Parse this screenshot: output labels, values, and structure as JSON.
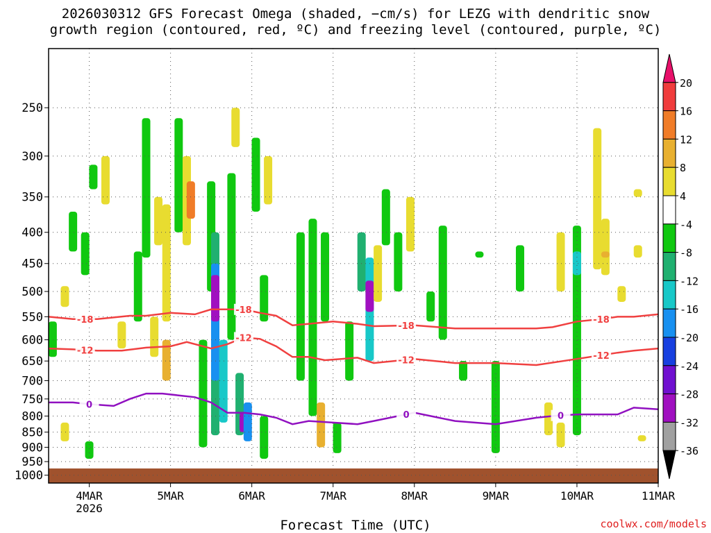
{
  "chart_data": {
    "type": "heatmap",
    "title_line1": "2026030312 GFS Forecast Omega (shaded, −cm/s) for LEZG with dendritic snow",
    "title_line2": "growth region (contoured, red, ºC) and freezing level (contoured, purple, ºC)",
    "xlabel": "Forecast Time (UTC)",
    "credit": "coolwx.com/models",
    "x_ticks": [
      {
        "t": 0.5,
        "label": "4MAR",
        "sub": "2026"
      },
      {
        "t": 1.5,
        "label": "5MAR",
        "sub": ""
      },
      {
        "t": 2.5,
        "label": "6MAR",
        "sub": ""
      },
      {
        "t": 3.5,
        "label": "7MAR",
        "sub": ""
      },
      {
        "t": 4.5,
        "label": "8MAR",
        "sub": ""
      },
      {
        "t": 5.5,
        "label": "9MAR",
        "sub": ""
      },
      {
        "t": 6.5,
        "label": "10MAR",
        "sub": ""
      },
      {
        "t": 7.5,
        "label": "11MAR",
        "sub": ""
      }
    ],
    "xlim": [
      0,
      7.5
    ],
    "y_ticks": [
      250,
      300,
      350,
      400,
      450,
      500,
      550,
      600,
      650,
      700,
      750,
      800,
      850,
      900,
      950,
      1000
    ],
    "ylim": [
      200,
      1030
    ],
    "y_scale": "log-pressure",
    "ground_top_hpa": 975,
    "colorbar": {
      "levels": [
        20,
        16,
        12,
        8,
        4,
        -4,
        -8,
        -12,
        -16,
        -20,
        -24,
        -28,
        -32,
        -36
      ],
      "colors": [
        "#e8106a",
        "#f03c3c",
        "#f07c28",
        "#e8b030",
        "#e8dc30",
        "#ffffff",
        "#10c810",
        "#20b070",
        "#18c8c8",
        "#1890f0",
        "#1840e0",
        "#7010d0",
        "#a010c0",
        "#a0a0a0",
        "#000000"
      ]
    },
    "contours": [
      {
        "label": "-18",
        "color": "#f04040",
        "x": [
          0,
          0.3,
          0.6,
          1.0,
          1.2,
          1.5,
          1.8,
          2.0,
          2.2,
          2.4,
          2.6,
          2.8,
          3.0,
          3.2,
          3.5,
          3.8,
          4.0,
          4.5,
          5.0,
          5.5,
          6.0,
          6.2,
          6.5,
          6.8,
          7.0,
          7.2,
          7.5
        ],
        "p": [
          550,
          555,
          555,
          548,
          548,
          542,
          545,
          535,
          535,
          535,
          542,
          548,
          568,
          565,
          560,
          565,
          570,
          568,
          575,
          575,
          575,
          572,
          560,
          555,
          550,
          550,
          545
        ],
        "label_x": [
          0.45,
          2.4,
          4.4,
          6.8
        ]
      },
      {
        "label": "-12",
        "color": "#f04040",
        "x": [
          0,
          0.3,
          0.6,
          0.9,
          1.2,
          1.5,
          1.7,
          2.0,
          2.2,
          2.4,
          2.6,
          2.8,
          3.0,
          3.2,
          3.4,
          3.6,
          3.8,
          4.0,
          4.5,
          5.0,
          5.5,
          6.0,
          6.5,
          7.0,
          7.2,
          7.5
        ],
        "p": [
          620,
          622,
          625,
          625,
          618,
          615,
          605,
          620,
          610,
          595,
          598,
          615,
          640,
          640,
          648,
          645,
          642,
          655,
          645,
          655,
          655,
          660,
          645,
          630,
          625,
          620
        ],
        "label_x": [
          0.45,
          2.4,
          4.4,
          6.8
        ]
      },
      {
        "label": "0",
        "color": "#9010c0",
        "x": [
          0,
          0.3,
          0.5,
          0.8,
          1.0,
          1.2,
          1.4,
          1.6,
          1.8,
          2.0,
          2.2,
          2.4,
          2.6,
          2.8,
          3.0,
          3.2,
          3.5,
          3.8,
          4.0,
          4.5,
          5.0,
          5.5,
          6.0,
          6.2,
          6.5,
          7.0,
          7.2,
          7.5
        ],
        "p": [
          760,
          760,
          765,
          770,
          750,
          735,
          735,
          740,
          745,
          760,
          790,
          790,
          795,
          805,
          825,
          815,
          820,
          825,
          815,
          790,
          815,
          825,
          805,
          800,
          795,
          795,
          775,
          780
        ],
        "label_x": [
          0.5,
          4.4,
          6.3
        ]
      }
    ],
    "shaded_cells": [
      {
        "x": 0.05,
        "p0": 560,
        "p1": 640,
        "v": -6
      },
      {
        "x": 0.3,
        "p0": 370,
        "p1": 430,
        "v": -6
      },
      {
        "x": 0.45,
        "p0": 400,
        "p1": 470,
        "v": -6
      },
      {
        "x": 0.5,
        "p0": 880,
        "p1": 940,
        "v": -6
      },
      {
        "x": 0.55,
        "p0": 310,
        "p1": 340,
        "v": -6
      },
      {
        "x": 0.2,
        "p0": 490,
        "p1": 530,
        "v": 5
      },
      {
        "x": 0.2,
        "p0": 820,
        "p1": 880,
        "v": 5
      },
      {
        "x": 0.7,
        "p0": 300,
        "p1": 360,
        "v": 5
      },
      {
        "x": 0.9,
        "p0": 560,
        "p1": 620,
        "v": 5
      },
      {
        "x": 1.1,
        "p0": 430,
        "p1": 560,
        "v": -6
      },
      {
        "x": 1.2,
        "p0": 260,
        "p1": 440,
        "v": -6
      },
      {
        "x": 1.3,
        "p0": 550,
        "p1": 640,
        "v": 5
      },
      {
        "x": 1.35,
        "p0": 350,
        "p1": 420,
        "v": 6
      },
      {
        "x": 1.45,
        "p0": 360,
        "p1": 560,
        "v": 6
      },
      {
        "x": 1.45,
        "p0": 600,
        "p1": 700,
        "v": 10
      },
      {
        "x": 1.6,
        "p0": 260,
        "p1": 400,
        "v": -6
      },
      {
        "x": 1.7,
        "p0": 300,
        "p1": 420,
        "v": 6
      },
      {
        "x": 1.75,
        "p0": 330,
        "p1": 380,
        "v": 12
      },
      {
        "x": 1.9,
        "p0": 600,
        "p1": 900,
        "v": -6
      },
      {
        "x": 2.0,
        "p0": 330,
        "p1": 500,
        "v": -6
      },
      {
        "x": 2.05,
        "p0": 400,
        "p1": 860,
        "v": -10
      },
      {
        "x": 2.05,
        "p0": 450,
        "p1": 700,
        "v": -18
      },
      {
        "x": 2.05,
        "p0": 470,
        "p1": 560,
        "v": -30
      },
      {
        "x": 2.15,
        "p0": 600,
        "p1": 820,
        "v": -14
      },
      {
        "x": 2.25,
        "p0": 320,
        "p1": 600,
        "v": -6
      },
      {
        "x": 2.35,
        "p0": 680,
        "p1": 860,
        "v": -8
      },
      {
        "x": 2.4,
        "p0": 790,
        "p1": 850,
        "v": -30
      },
      {
        "x": 2.45,
        "p0": 760,
        "p1": 880,
        "v": -18
      },
      {
        "x": 2.3,
        "p0": 250,
        "p1": 290,
        "v": 5
      },
      {
        "x": 2.55,
        "p0": 280,
        "p1": 370,
        "v": -6
      },
      {
        "x": 2.65,
        "p0": 470,
        "p1": 560,
        "v": -6
      },
      {
        "x": 2.7,
        "p0": 300,
        "p1": 360,
        "v": 6
      },
      {
        "x": 2.65,
        "p0": 800,
        "p1": 940,
        "v": -6
      },
      {
        "x": 3.1,
        "p0": 400,
        "p1": 700,
        "v": -6
      },
      {
        "x": 3.25,
        "p0": 380,
        "p1": 800,
        "v": -6
      },
      {
        "x": 3.35,
        "p0": 760,
        "p1": 900,
        "v": 8
      },
      {
        "x": 3.4,
        "p0": 400,
        "p1": 560,
        "v": -6
      },
      {
        "x": 3.55,
        "p0": 820,
        "p1": 920,
        "v": -6
      },
      {
        "x": 3.7,
        "p0": 560,
        "p1": 700,
        "v": -6
      },
      {
        "x": 3.85,
        "p0": 400,
        "p1": 500,
        "v": -10
      },
      {
        "x": 3.95,
        "p0": 440,
        "p1": 650,
        "v": -14
      },
      {
        "x": 3.95,
        "p0": 480,
        "p1": 540,
        "v": -28
      },
      {
        "x": 4.05,
        "p0": 420,
        "p1": 520,
        "v": 6
      },
      {
        "x": 4.15,
        "p0": 340,
        "p1": 420,
        "v": -6
      },
      {
        "x": 4.3,
        "p0": 400,
        "p1": 500,
        "v": -6
      },
      {
        "x": 4.45,
        "p0": 350,
        "p1": 430,
        "v": 5
      },
      {
        "x": 4.7,
        "p0": 500,
        "p1": 560,
        "v": -6
      },
      {
        "x": 4.85,
        "p0": 390,
        "p1": 600,
        "v": -6
      },
      {
        "x": 5.1,
        "p0": 650,
        "p1": 700,
        "v": -6
      },
      {
        "x": 5.3,
        "p0": 430,
        "p1": 440,
        "v": -6
      },
      {
        "x": 5.5,
        "p0": 650,
        "p1": 920,
        "v": -6
      },
      {
        "x": 5.8,
        "p0": 420,
        "p1": 500,
        "v": -6
      },
      {
        "x": 6.15,
        "p0": 760,
        "p1": 860,
        "v": 5
      },
      {
        "x": 6.3,
        "p0": 820,
        "p1": 900,
        "v": 5
      },
      {
        "x": 6.5,
        "p0": 390,
        "p1": 860,
        "v": -6
      },
      {
        "x": 6.5,
        "p0": 430,
        "p1": 470,
        "v": -12
      },
      {
        "x": 6.3,
        "p0": 400,
        "p1": 500,
        "v": 5
      },
      {
        "x": 6.75,
        "p0": 270,
        "p1": 460,
        "v": 5
      },
      {
        "x": 6.85,
        "p0": 380,
        "p1": 470,
        "v": 5
      },
      {
        "x": 6.85,
        "p0": 430,
        "p1": 440,
        "v": 10
      },
      {
        "x": 7.05,
        "p0": 490,
        "p1": 520,
        "v": 5
      },
      {
        "x": 7.25,
        "p0": 420,
        "p1": 440,
        "v": 5
      },
      {
        "x": 7.25,
        "p0": 340,
        "p1": 350,
        "v": 5
      },
      {
        "x": 7.3,
        "p0": 860,
        "p1": 880,
        "v": 5
      }
    ]
  }
}
